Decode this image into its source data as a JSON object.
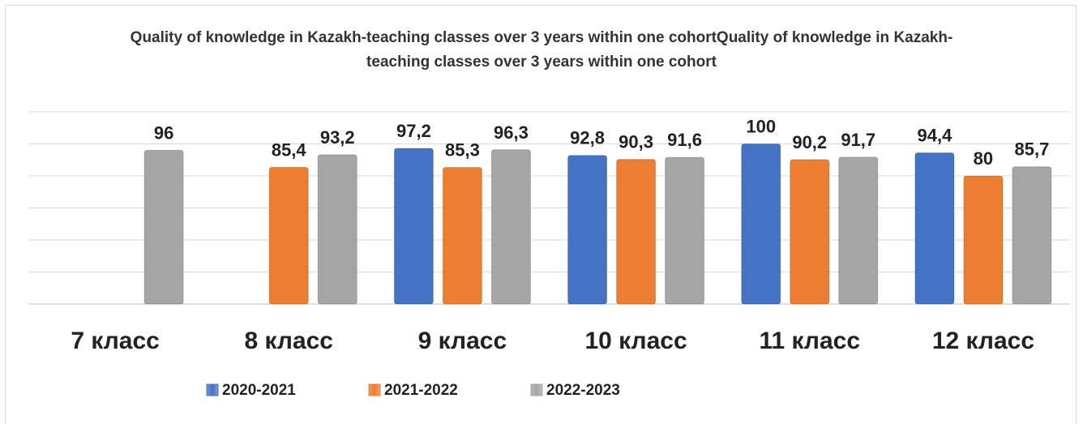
{
  "chart_data": {
    "type": "bar",
    "title": "Quality of knowledge in Kazakh-teaching classes over 3 years within one cohortQuality of knowledge in Kazakh-teaching classes over 3 years within one cohort",
    "categories": [
      "7 класс",
      "8 класс",
      "9 класс",
      "10 класс",
      "11 класс",
      "12 класс"
    ],
    "series": [
      {
        "name": "2020-2021",
        "color": "#4472c4",
        "values": [
          null,
          null,
          97.2,
          92.8,
          100,
          94.4
        ],
        "value_labels": [
          null,
          null,
          "97,2",
          "92,8",
          "100",
          "94,4"
        ]
      },
      {
        "name": "2021-2022",
        "color": "#ed7d31",
        "values": [
          null,
          85.4,
          85.3,
          90.3,
          90.2,
          80
        ],
        "value_labels": [
          null,
          "85,4",
          "85,3",
          "90,3",
          "90,2",
          "80"
        ]
      },
      {
        "name": "2022-2023",
        "color": "#a5a5a5",
        "values": [
          96,
          93.2,
          96.3,
          91.6,
          91.7,
          85.7
        ],
        "value_labels": [
          "96",
          "93,2",
          "96,3",
          "91,6",
          "91,7",
          "85,7"
        ]
      }
    ],
    "ylim": [
      0,
      120
    ],
    "yticks": [
      0,
      20,
      40,
      60,
      80,
      100,
      120
    ],
    "grid": true,
    "legend": "bottom"
  }
}
